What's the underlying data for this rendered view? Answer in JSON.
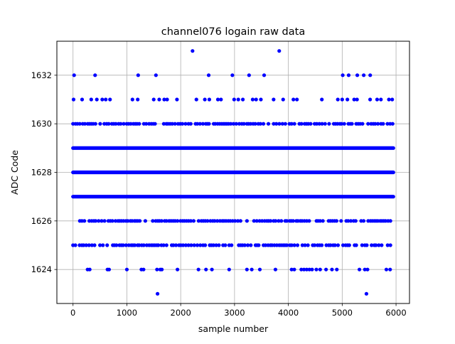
{
  "chart_data": {
    "type": "scatter",
    "title": "channel076 logain raw data",
    "xlabel": "sample number",
    "ylabel": "ADC Code",
    "xlim": [
      -300,
      6250
    ],
    "ylim": [
      1622.6,
      1633.4
    ],
    "x_ticks": [
      0,
      1000,
      2000,
      3000,
      4000,
      5000,
      6000
    ],
    "y_ticks": [
      1624,
      1626,
      1628,
      1630,
      1632
    ],
    "grid": true,
    "series": [
      {
        "color": "#0000ff",
        "marker": "circle",
        "bands": [
          {
            "y": 1627,
            "x_range": [
              0,
              5950
            ],
            "density": "continuous"
          },
          {
            "y": 1628,
            "x_range": [
              0,
              5950
            ],
            "density": "continuous"
          },
          {
            "y": 1629,
            "x_range": [
              0,
              5950
            ],
            "density": "continuous"
          },
          {
            "y": 1630,
            "x_range": [
              0,
              5950
            ],
            "density": "dense"
          },
          {
            "y": 1626,
            "x_range": [
              80,
              5950
            ],
            "density": "dense"
          },
          {
            "y": 1625,
            "x_range": [
              0,
              5950
            ],
            "density": "dense"
          },
          {
            "y": 1631,
            "x_range": [
              10,
              5950
            ],
            "density": "sparse"
          }
        ],
        "points": [
          {
            "x": 20,
            "y": 1632
          },
          {
            "x": 410,
            "y": 1632
          },
          {
            "x": 1210,
            "y": 1632
          },
          {
            "x": 1540,
            "y": 1632
          },
          {
            "x": 2520,
            "y": 1632
          },
          {
            "x": 2960,
            "y": 1632
          },
          {
            "x": 3270,
            "y": 1632
          },
          {
            "x": 3550,
            "y": 1632
          },
          {
            "x": 5010,
            "y": 1632
          },
          {
            "x": 5120,
            "y": 1632
          },
          {
            "x": 5280,
            "y": 1632
          },
          {
            "x": 5400,
            "y": 1632
          },
          {
            "x": 5520,
            "y": 1632
          },
          {
            "x": 2220,
            "y": 1633
          },
          {
            "x": 3830,
            "y": 1633
          },
          {
            "x": 1570,
            "y": 1623
          },
          {
            "x": 5450,
            "y": 1623
          },
          {
            "x": 270,
            "y": 1624
          },
          {
            "x": 310,
            "y": 1624
          },
          {
            "x": 640,
            "y": 1624
          },
          {
            "x": 670,
            "y": 1624
          },
          {
            "x": 1000,
            "y": 1624
          },
          {
            "x": 1270,
            "y": 1624
          },
          {
            "x": 1310,
            "y": 1624
          },
          {
            "x": 1560,
            "y": 1624
          },
          {
            "x": 1620,
            "y": 1624
          },
          {
            "x": 1650,
            "y": 1624
          },
          {
            "x": 1940,
            "y": 1624
          },
          {
            "x": 2330,
            "y": 1624
          },
          {
            "x": 2470,
            "y": 1624
          },
          {
            "x": 2580,
            "y": 1624
          },
          {
            "x": 2900,
            "y": 1624
          },
          {
            "x": 3230,
            "y": 1624
          },
          {
            "x": 3320,
            "y": 1624
          },
          {
            "x": 3470,
            "y": 1624
          },
          {
            "x": 3760,
            "y": 1624
          },
          {
            "x": 4060,
            "y": 1624
          },
          {
            "x": 4110,
            "y": 1624
          },
          {
            "x": 4240,
            "y": 1624
          },
          {
            "x": 4290,
            "y": 1624
          },
          {
            "x": 4340,
            "y": 1624
          },
          {
            "x": 4390,
            "y": 1624
          },
          {
            "x": 4440,
            "y": 1624
          },
          {
            "x": 4520,
            "y": 1624
          },
          {
            "x": 4590,
            "y": 1624
          },
          {
            "x": 4700,
            "y": 1624
          },
          {
            "x": 4810,
            "y": 1624
          },
          {
            "x": 4900,
            "y": 1624
          },
          {
            "x": 5320,
            "y": 1624
          },
          {
            "x": 5420,
            "y": 1624
          },
          {
            "x": 5470,
            "y": 1624
          },
          {
            "x": 5820,
            "y": 1624
          },
          {
            "x": 5890,
            "y": 1624
          }
        ]
      }
    ]
  }
}
